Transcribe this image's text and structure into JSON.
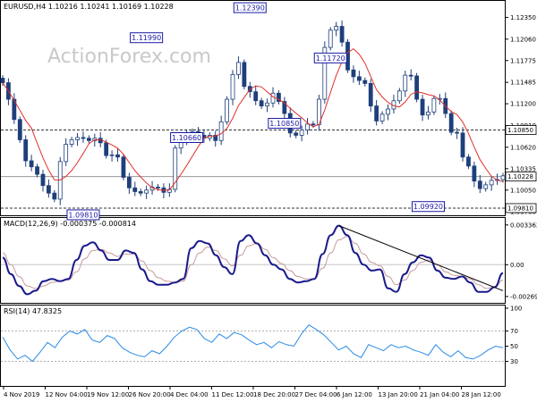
{
  "watermark": "ActionForex.com",
  "price_header": "EURUSD,H4  1.10216 1.10241 1.10169 1.10228",
  "macd_header": "MACD(12,26,9) -0.000375 -0.000814",
  "rsi_header": "RSI(14) 47.8325",
  "chart_data": [
    {
      "type": "line",
      "panel": "price",
      "ylim": [
        1.0975,
        1.1251
      ],
      "y_ticks": [
        "1.12350",
        "1.12060",
        "1.11775",
        "1.11485",
        "1.11200",
        "1.10910",
        "1.10620",
        "1.10335",
        "1.10050",
        "1.09760"
      ],
      "y_tick_values": [
        1.1235,
        1.1206,
        1.11775,
        1.11485,
        1.112,
        1.1091,
        1.1062,
        1.10335,
        1.1005,
        1.0976
      ],
      "x_ticks": [
        "4 Nov 2019",
        "12 Nov 04:00",
        "19 Nov 12:00",
        "26 Nov 20:00",
        "4 Dec 04:00",
        "11 Dec 12:00",
        "18 Dec 20:00",
        "27 Dec 04:00",
        "6 Jan 12:00",
        "13 Jan 20:00",
        "21 Jan 04:00",
        "28 Jan 12:00"
      ],
      "series": [
        {
          "type": "candlestick",
          "color": "#1f3f7a",
          "values": [
            1.1148,
            1.1126,
            1.1099,
            1.1072,
            1.1044,
            1.1036,
            1.1026,
            1.1011,
            1.1001,
            1.0993,
            1.1043,
            1.1066,
            1.1072,
            1.1075,
            1.1074,
            1.1071,
            1.1074,
            1.1068,
            1.1051,
            1.1052,
            1.1049,
            1.1022,
            1.1008,
            1.1003,
            1.1001,
            1.1005,
            1.1009,
            1.1008,
            1.1002,
            1.1006,
            1.1061,
            1.1071,
            1.1078,
            1.1083,
            1.1078,
            1.1074,
            1.1078,
            1.1071,
            1.1096,
            1.1126,
            1.1159,
            1.1175,
            1.1143,
            1.1136,
            1.1124,
            1.1117,
            1.1121,
            1.1134,
            1.1123,
            1.1107,
            1.1081,
            1.1078,
            1.1085,
            1.1093,
            1.1092,
            1.1126,
            1.1195,
            1.1218,
            1.1223,
            1.1202,
            1.1165,
            1.1156,
            1.1151,
            1.1147,
            1.1117,
            1.1097,
            1.1106,
            1.1113,
            1.1124,
            1.1137,
            1.1158,
            1.1157,
            1.1126,
            1.1105,
            1.1109,
            1.1127,
            1.1127,
            1.1107,
            1.1082,
            1.1081,
            1.1049,
            1.1037,
            1.1017,
            1.1007,
            1.1012,
            1.1018,
            1.1019,
            1.1024
          ]
        },
        {
          "name": "",
          "type": "moving-average",
          "color": "#e0302a"
        }
      ],
      "hlines": [
        {
          "value": 1.1085,
          "style": "dashed",
          "label": "1.10850",
          "label_style": "boxed"
        },
        {
          "value": 1.1023,
          "style": "solid",
          "label": "1.10228",
          "label_style": "boxed"
        },
        {
          "value": 1.0981,
          "style": "dashed",
          "label": "1.09810",
          "label_style": "boxed"
        }
      ],
      "annotations": [
        {
          "label": "1.09810",
          "x_index": 14,
          "value": 1.0981
        },
        {
          "label": "1.11990",
          "x_index": 25,
          "value": 1.1199
        },
        {
          "label": "1.10660",
          "x_index": 32,
          "value": 1.1066
        },
        {
          "label": "1.12390",
          "x_index": 43,
          "value": 1.1239
        },
        {
          "label": "1.10850",
          "x_index": 49,
          "value": 1.1085
        },
        {
          "label": "1.11720",
          "x_index": 57,
          "value": 1.1172
        },
        {
          "label": "1.09920",
          "x_index": 74,
          "value": 1.0992
        }
      ]
    },
    {
      "type": "line",
      "panel": "macd",
      "title": "MACD(12,26,9) -0.000375 -0.000814",
      "ylim": [
        -0.003,
        0.0035
      ],
      "y_ticks": [
        "0.003362",
        "0.00",
        "-0.002691"
      ],
      "y_tick_values": [
        0.003362,
        0.0,
        -0.002691
      ],
      "series": [
        {
          "name": "",
          "color": "#1a1a8c",
          "values": [
            0.0006,
            -0.0008,
            -0.0018,
            -0.0025,
            -0.0022,
            -0.0014,
            -0.0012,
            -0.0014,
            -0.0012,
            0.0004,
            0.0016,
            0.0019,
            0.0012,
            0.0004,
            0.0004,
            0.0012,
            0.001,
            -0.0004,
            -0.0014,
            -0.0017,
            -0.0017,
            -0.0015,
            -0.0012,
            0.0014,
            0.002,
            0.0018,
            0.0008,
            -0.0002,
            -0.0008,
            0.002,
            0.0025,
            0.0018,
            0.0008,
            0.0,
            -0.0004,
            -0.0012,
            -0.0015,
            -0.0014,
            -0.0012,
            0.0009,
            0.0025,
            0.0033,
            0.0025,
            0.001,
            0.0,
            -0.0005,
            -0.0004,
            -0.002,
            -0.0023,
            -0.0008,
            0.0002,
            0.0008,
            0.0006,
            -0.0005,
            -0.0011,
            -0.0012,
            -0.001,
            -0.0015,
            -0.0023,
            -0.0023,
            -0.0019,
            -0.0007
          ]
        },
        {
          "name": "",
          "color": "#c89b9b",
          "values": [
            0.001,
            0.0,
            -0.001,
            -0.0018,
            -0.002,
            -0.0018,
            -0.0015,
            -0.0014,
            -0.0013,
            -0.0006,
            0.0005,
            0.0012,
            0.0013,
            0.001,
            0.0007,
            0.0009,
            0.0009,
            0.0003,
            -0.0005,
            -0.0011,
            -0.0014,
            -0.0015,
            -0.0014,
            0.0,
            0.001,
            0.0015,
            0.0012,
            0.0005,
            -0.0001,
            0.0008,
            0.0016,
            0.0018,
            0.0013,
            0.0006,
            0.0001,
            -0.0005,
            -0.001,
            -0.0012,
            -0.0012,
            -0.0003,
            0.001,
            0.0021,
            0.0024,
            0.0018,
            0.0009,
            0.0002,
            -0.0001,
            -0.001,
            -0.0017,
            -0.0013,
            -0.0005,
            0.0002,
            0.0004,
            0.0,
            -0.0006,
            -0.0009,
            -0.001,
            -0.0012,
            -0.0017,
            -0.002,
            -0.0019,
            -0.0013
          ]
        }
      ],
      "trendline": {
        "from": {
          "x_index": 41,
          "value": 0.0033
        },
        "to": {
          "x_index": 61,
          "value": -0.0022
        }
      }
    },
    {
      "type": "line",
      "panel": "rsi",
      "title": "RSI(14) 47.8325",
      "ylim": [
        0,
        100
      ],
      "y_ticks": [
        "100",
        "70",
        "50",
        "30",
        "0"
      ],
      "y_tick_values": [
        100,
        70,
        50,
        30,
        0
      ],
      "series": [
        {
          "name": "",
          "color": "#2a8be6",
          "values": [
            62,
            45,
            33,
            38,
            30,
            42,
            55,
            48,
            62,
            70,
            66,
            72,
            58,
            55,
            64,
            60,
            48,
            42,
            38,
            36,
            44,
            40,
            50,
            62,
            70,
            75,
            72,
            60,
            55,
            66,
            60,
            68,
            65,
            58,
            52,
            55,
            48,
            56,
            52,
            50,
            66,
            78,
            72,
            65,
            55,
            45,
            50,
            40,
            35,
            52,
            48,
            44,
            52,
            48,
            50,
            45,
            42,
            38,
            52,
            42,
            36,
            44,
            35,
            33,
            38,
            45,
            50,
            48
          ]
        }
      ]
    }
  ]
}
